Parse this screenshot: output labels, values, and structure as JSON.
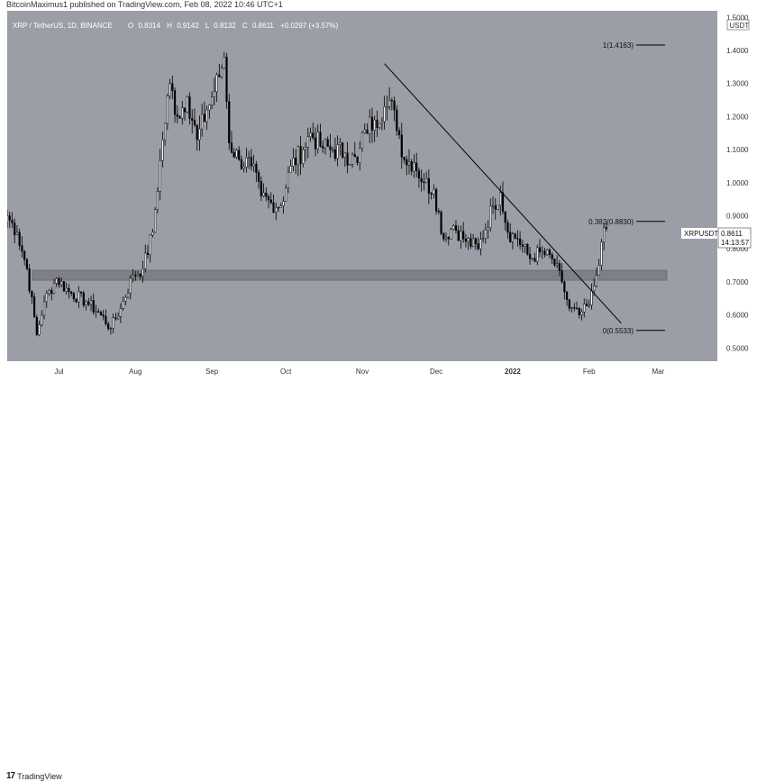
{
  "publisher": "BitcoinMaximus1 published on TradingView.com, Feb 08, 2022 10:46 UTC+1",
  "footer_brand": "TradingView",
  "colors": {
    "background": "#9c9ea7",
    "up": "#ffffff",
    "down": "#000000",
    "zone": "#7f8087"
  },
  "chart_data": {
    "type": "candlestick",
    "symbol_line": "XRP / TetherUS, 1D, BINANCE",
    "ohlc_text": {
      "o_label": "O",
      "o": "0.8314",
      "h_label": "H",
      "h": "0.9142",
      "l_label": "L",
      "l": "0.8132",
      "c_label": "C",
      "c": "0.8611",
      "change": "+0.0297 (+3.57%)"
    },
    "currency": "USDT",
    "ylim": [
      0.46,
      1.52
    ],
    "y_ticks": [
      "0.5000",
      "0.6000",
      "0.7000",
      "0.8000",
      "0.9000",
      "1.0000",
      "1.1000",
      "1.2000",
      "1.3000",
      "1.4000",
      "1.5000"
    ],
    "x_ticks": [
      "Jul",
      "Aug",
      "Sep",
      "Oct",
      "Nov",
      "Dec",
      "2022",
      "Feb",
      "Mar"
    ],
    "x_domain": [
      "2021-06-10",
      "2022-03-25"
    ],
    "tick_dates": [
      "2021-07-01",
      "2021-08-01",
      "2021-09-01",
      "2021-10-01",
      "2021-11-01",
      "2021-12-01",
      "2022-01-01",
      "2022-02-01",
      "2022-03-01"
    ],
    "price_label": {
      "symbol": "XRPUSDT",
      "price": "0.8611",
      "countdown": "14:13:57"
    },
    "fib_levels": [
      {
        "label": "1(1.4163)",
        "value": 1.4163
      },
      {
        "label": "0.382(0.8830)",
        "value": 0.883
      },
      {
        "label": "0(0.5533)",
        "value": 0.5533
      }
    ],
    "support_zone": [
      0.705,
      0.735
    ],
    "trendline": [
      [
        "2021-11-10",
        1.36
      ],
      [
        "2022-02-14",
        0.575
      ]
    ],
    "anchors": [
      [
        "2021-06-10",
        0.9
      ],
      [
        "2021-06-14",
        0.85
      ],
      [
        "2021-06-18",
        0.74
      ],
      [
        "2021-06-22",
        0.54
      ],
      [
        "2021-06-25",
        0.64
      ],
      [
        "2021-06-30",
        0.71
      ],
      [
        "2021-07-05",
        0.67
      ],
      [
        "2021-07-12",
        0.64
      ],
      [
        "2021-07-18",
        0.6
      ],
      [
        "2021-07-22",
        0.56
      ],
      [
        "2021-07-26",
        0.62
      ],
      [
        "2021-07-31",
        0.72
      ],
      [
        "2021-08-04",
        0.74
      ],
      [
        "2021-08-08",
        0.85
      ],
      [
        "2021-08-12",
        1.13
      ],
      [
        "2021-08-15",
        1.3
      ],
      [
        "2021-08-18",
        1.2
      ],
      [
        "2021-08-22",
        1.26
      ],
      [
        "2021-08-26",
        1.13
      ],
      [
        "2021-08-30",
        1.22
      ],
      [
        "2021-09-04",
        1.32
      ],
      [
        "2021-09-06",
        1.38
      ],
      [
        "2021-09-08",
        1.12
      ],
      [
        "2021-09-12",
        1.07
      ],
      [
        "2021-09-17",
        1.05
      ],
      [
        "2021-09-21",
        0.96
      ],
      [
        "2021-09-25",
        0.94
      ],
      [
        "2021-09-29",
        0.93
      ],
      [
        "2021-10-03",
        1.05
      ],
      [
        "2021-10-08",
        1.1
      ],
      [
        "2021-10-11",
        1.15
      ],
      [
        "2021-10-15",
        1.11
      ],
      [
        "2021-10-20",
        1.1
      ],
      [
        "2021-10-25",
        1.09
      ],
      [
        "2021-10-30",
        1.06
      ],
      [
        "2021-11-02",
        1.16
      ],
      [
        "2021-11-06",
        1.19
      ],
      [
        "2021-11-10",
        1.23
      ],
      [
        "2021-11-14",
        1.22
      ],
      [
        "2021-11-18",
        1.07
      ],
      [
        "2021-11-22",
        1.06
      ],
      [
        "2021-11-26",
        1.0
      ],
      [
        "2021-11-30",
        0.98
      ],
      [
        "2021-12-04",
        0.83
      ],
      [
        "2021-12-08",
        0.87
      ],
      [
        "2021-12-12",
        0.83
      ],
      [
        "2021-12-18",
        0.8
      ],
      [
        "2021-12-24",
        0.93
      ],
      [
        "2021-12-27",
        0.97
      ],
      [
        "2021-12-30",
        0.85
      ],
      [
        "2022-01-03",
        0.83
      ],
      [
        "2022-01-08",
        0.77
      ],
      [
        "2022-01-12",
        0.79
      ],
      [
        "2022-01-17",
        0.77
      ],
      [
        "2022-01-21",
        0.7
      ],
      [
        "2022-01-24",
        0.62
      ],
      [
        "2022-01-28",
        0.6
      ],
      [
        "2022-02-01",
        0.63
      ],
      [
        "2022-02-04",
        0.72
      ],
      [
        "2022-02-06",
        0.82
      ],
      [
        "2022-02-08",
        0.861
      ]
    ]
  }
}
